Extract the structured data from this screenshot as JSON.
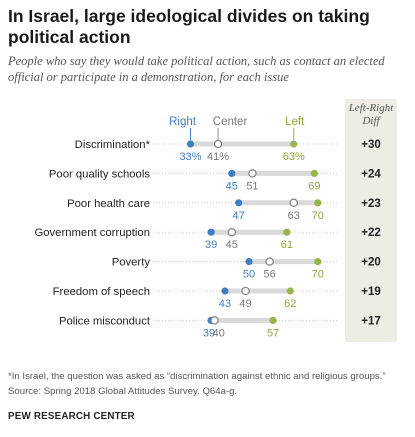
{
  "title": "In Israel, large ideological divides on taking political action",
  "subtitle": "People who say they would take political action, such as contact an elected official or participate in a demonstration, for each issue",
  "colors": {
    "right": "#3f7fc1",
    "center": "#999999",
    "left": "#97b548",
    "diff_bg": "#edece5"
  },
  "chart_data": {
    "type": "dot",
    "legend": {
      "right": "Right",
      "center": "Center",
      "left": "Left"
    },
    "diff_header": "Left-Right Diff",
    "xlim": [
      25,
      75
    ],
    "rows": [
      {
        "label": "Discrimination*",
        "right": 33,
        "center": 41,
        "left": 63,
        "right_text": "33%",
        "center_text": "41%",
        "left_text": "63%",
        "diff": "+30"
      },
      {
        "label": "Poor quality schools",
        "right": 45,
        "center": 51,
        "left": 69,
        "right_text": "45",
        "center_text": "51",
        "left_text": "69",
        "diff": "+24"
      },
      {
        "label": "Poor health care",
        "right": 47,
        "center": 63,
        "left": 70,
        "right_text": "47",
        "center_text": "63",
        "left_text": "70",
        "diff": "+23"
      },
      {
        "label": "Government corruption",
        "right": 39,
        "center": 45,
        "left": 61,
        "right_text": "39",
        "center_text": "45",
        "left_text": "61",
        "diff": "+22"
      },
      {
        "label": "Poverty",
        "right": 50,
        "center": 56,
        "left": 70,
        "right_text": "50",
        "center_text": "56",
        "left_text": "70",
        "diff": "+20"
      },
      {
        "label": "Freedom of speech",
        "right": 43,
        "center": 49,
        "left": 62,
        "right_text": "43",
        "center_text": "49",
        "left_text": "62",
        "diff": "+19"
      },
      {
        "label": "Police misconduct",
        "right": 39,
        "center": 40,
        "left": 57,
        "right_text": "39",
        "center_text": "40",
        "left_text": "57",
        "diff": "+17"
      }
    ]
  },
  "footer": {
    "note": "*In Israel, the question was asked as “discrimination against ethnic and religious groups.”",
    "source": "Source: Spring 2018 Global Attitudes Survey. Q64a-g.",
    "brand": "PEW RESEARCH CENTER"
  }
}
